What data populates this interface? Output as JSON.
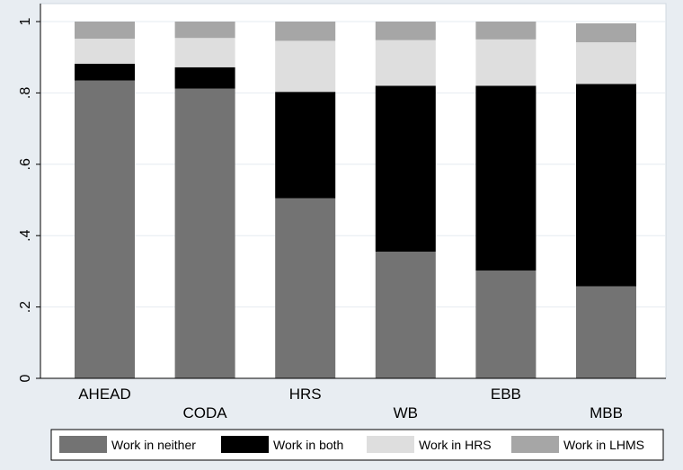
{
  "chart_data": {
    "type": "bar",
    "stacked": true,
    "categories": [
      "AHEAD",
      "CODA",
      "HRS",
      "WB",
      "EBB",
      "MBB"
    ],
    "series": [
      {
        "name": "Work in neither",
        "color": "#737373",
        "values": [
          0.835,
          0.812,
          0.505,
          0.355,
          0.302,
          0.258
        ]
      },
      {
        "name": "Work in both",
        "color": "#000000",
        "values": [
          0.047,
          0.06,
          0.298,
          0.465,
          0.518,
          0.567
        ]
      },
      {
        "name": "Work in HRS",
        "color": "#dedede",
        "values": [
          0.07,
          0.082,
          0.143,
          0.128,
          0.13,
          0.117
        ]
      },
      {
        "name": "Work in LHMS",
        "color": "#a6a6a6",
        "values": [
          0.048,
          0.046,
          0.054,
          0.052,
          0.05,
          0.053
        ]
      }
    ],
    "yticks": [
      0,
      0.2,
      0.4,
      0.6,
      0.8,
      1
    ],
    "ytick_labels": [
      "0",
      ".2",
      ".4",
      ".6",
      ".8",
      "1"
    ],
    "ylim": [
      0,
      1
    ],
    "grid": true,
    "legend_position": "bottom",
    "title": "",
    "xlabel": "",
    "ylabel": ""
  }
}
